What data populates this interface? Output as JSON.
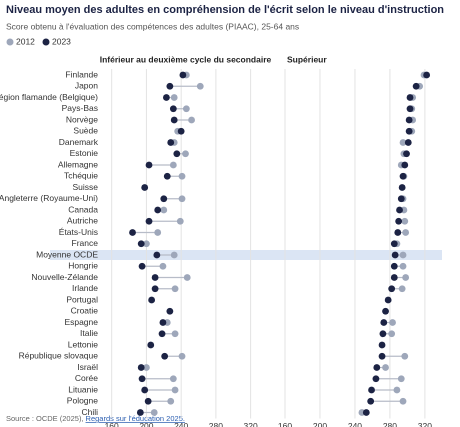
{
  "header": {
    "title": "Niveau moyen des adultes en compréhension de l'écrit selon le niveau d'instruction",
    "subtitle": "Score obtenu à l'évaluation des compétences des adultes (PIAAC), 25-64 ans"
  },
  "source": {
    "text": "Source : OCDE (2025), ",
    "link": "Regards sur l'éducation 2025."
  },
  "chart_data": [
    {
      "type": "dot",
      "title": "Inférieur au deuxième cycle du secondaire",
      "categories": [
        "Finlande",
        "Japon",
        "Région flamande (Belgique)",
        "Pays-Bas",
        "Norvège",
        "Suède",
        "Danemark",
        "Estonie",
        "Allemagne",
        "Tchéquie",
        "Suisse",
        "Angleterre (Royaume-Uni)",
        "Canada",
        "Autriche",
        "États-Unis",
        "France",
        "Moyenne OCDE",
        "Hongrie",
        "Nouvelle-Zélande",
        "Irlande",
        "Portugal",
        "Croatie",
        "Espagne",
        "Italie",
        "Lettonie",
        "République slovaque",
        "Israël",
        "Corée",
        "Lituanie",
        "Pologne",
        "Chili"
      ],
      "highlight_index": 16,
      "xlim": [
        150,
        340
      ],
      "xticks": [
        160,
        200,
        240,
        280,
        320
      ],
      "grid": true,
      "series": [
        {
          "name": "2012",
          "color": "#9ea7ba",
          "values": [
            246,
            262,
            232,
            246,
            252,
            236,
            232,
            245,
            231,
            241,
            null,
            241,
            220,
            239,
            213,
            200,
            232,
            219,
            247,
            233,
            null,
            null,
            224,
            233,
            null,
            241,
            200,
            231,
            233,
            228,
            209
          ]
        },
        {
          "name": "2023",
          "color": "#1c2344",
          "values": [
            242,
            227,
            223,
            231,
            232,
            240,
            228,
            235,
            203,
            224,
            198,
            220,
            213,
            203,
            184,
            194,
            212,
            195,
            210,
            210,
            206,
            227,
            219,
            218,
            205,
            221,
            194,
            195,
            198,
            202,
            193
          ]
        }
      ]
    },
    {
      "type": "dot",
      "title": "Supérieur",
      "xlim": [
        160,
        335
      ],
      "xticks": [
        160,
        200,
        240,
        280,
        320
      ],
      "grid": true,
      "series": [
        {
          "name": "2012",
          "color": "#9ea7ba",
          "values": [
            319,
            314,
            306,
            305,
            306,
            305,
            295,
            296,
            293,
            296,
            null,
            295,
            296,
            297,
            298,
            288,
            295,
            295,
            298,
            294,
            null,
            null,
            283,
            282,
            null,
            297,
            275,
            293,
            288,
            295,
            248
          ]
        },
        {
          "name": "2023",
          "color": "#1c2344",
          "values": [
            322,
            310,
            303,
            303,
            302,
            302,
            301,
            299,
            297,
            295,
            294,
            293,
            291,
            290,
            289,
            285,
            286,
            285,
            285,
            282,
            278,
            275,
            273,
            272,
            271,
            271,
            265,
            264,
            259,
            258,
            253
          ]
        }
      ]
    }
  ]
}
